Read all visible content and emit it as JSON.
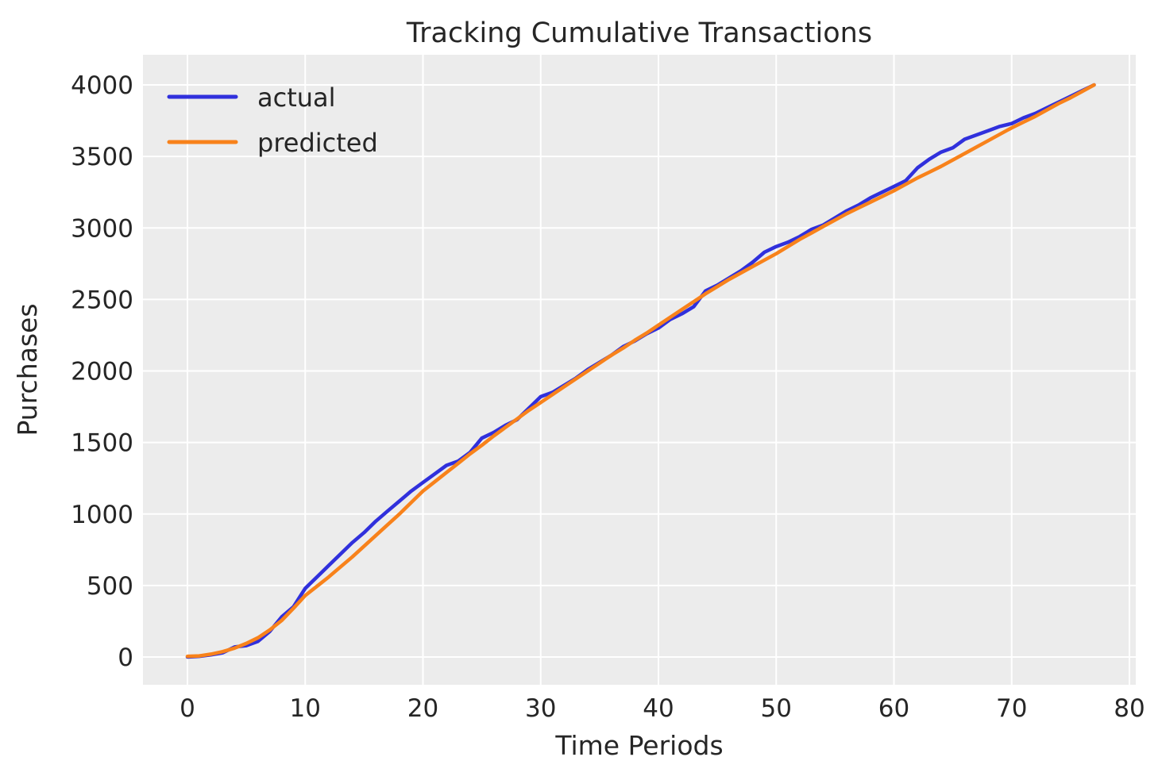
{
  "chart_data": {
    "type": "line",
    "title": "Tracking Cumulative Transactions",
    "xlabel": "Time Periods",
    "ylabel": "Purchases",
    "xlim": [
      -3.9,
      80.8
    ],
    "ylim": [
      -195,
      4210
    ],
    "x_ticks": [
      0,
      10,
      20,
      30,
      40,
      50,
      60,
      70,
      80
    ],
    "y_ticks": [
      0,
      500,
      1000,
      1500,
      2000,
      2500,
      3000,
      3500,
      4000
    ],
    "grid": true,
    "legend_position": "upper-left",
    "plot_background_color": "#ececec",
    "grid_color": "#ffffff",
    "text_color": "#262626",
    "x": [
      0,
      1,
      2,
      3,
      4,
      5,
      6,
      7,
      8,
      9,
      10,
      11,
      12,
      13,
      14,
      15,
      16,
      17,
      18,
      19,
      20,
      21,
      22,
      23,
      24,
      25,
      26,
      27,
      28,
      29,
      30,
      31,
      32,
      33,
      34,
      35,
      36,
      37,
      38,
      39,
      40,
      41,
      42,
      43,
      44,
      45,
      46,
      47,
      48,
      49,
      50,
      51,
      52,
      53,
      54,
      55,
      56,
      57,
      58,
      59,
      60,
      61,
      62,
      63,
      64,
      65,
      66,
      67,
      68,
      69,
      70,
      71,
      72,
      73,
      74,
      75,
      76,
      77
    ],
    "series": [
      {
        "name": "actual",
        "color": "#3030dc",
        "values": [
          0,
          5,
          15,
          30,
          70,
          80,
          110,
          180,
          280,
          350,
          480,
          560,
          640,
          720,
          800,
          870,
          950,
          1020,
          1090,
          1160,
          1220,
          1280,
          1340,
          1370,
          1430,
          1530,
          1570,
          1620,
          1660,
          1740,
          1820,
          1850,
          1900,
          1950,
          2010,
          2060,
          2110,
          2170,
          2210,
          2260,
          2300,
          2360,
          2400,
          2450,
          2560,
          2600,
          2650,
          2700,
          2760,
          2830,
          2870,
          2900,
          2940,
          2990,
          3020,
          3070,
          3120,
          3160,
          3210,
          3250,
          3290,
          3330,
          3420,
          3480,
          3530,
          3560,
          3620,
          3650,
          3680,
          3710,
          3730,
          3770,
          3800,
          3840,
          3880,
          3920,
          3960,
          4000
        ]
      },
      {
        "name": "predicted",
        "color": "#f8821b",
        "values": [
          5,
          8,
          20,
          38,
          62,
          95,
          135,
          190,
          255,
          340,
          430,
          495,
          560,
          630,
          700,
          775,
          850,
          925,
          1000,
          1080,
          1160,
          1225,
          1290,
          1355,
          1420,
          1480,
          1545,
          1605,
          1665,
          1725,
          1780,
          1835,
          1890,
          1945,
          2000,
          2055,
          2110,
          2160,
          2215,
          2265,
          2320,
          2375,
          2430,
          2485,
          2540,
          2590,
          2640,
          2685,
          2730,
          2775,
          2820,
          2870,
          2920,
          2965,
          3010,
          3055,
          3100,
          3140,
          3180,
          3220,
          3260,
          3305,
          3350,
          3390,
          3430,
          3475,
          3520,
          3565,
          3610,
          3655,
          3700,
          3740,
          3780,
          3825,
          3870,
          3910,
          3955,
          4000
        ]
      }
    ]
  }
}
